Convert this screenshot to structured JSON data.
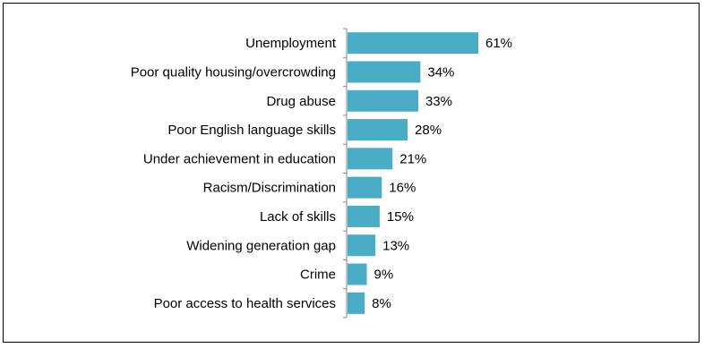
{
  "chart_data": {
    "type": "bar",
    "orientation": "horizontal",
    "categories": [
      "Unemployment",
      "Poor quality housing/overcrowding",
      "Drug abuse",
      "Poor English language skills",
      "Under achievement in education",
      "Racism/Discrimination",
      "Lack of skills",
      "Widening generation gap",
      "Crime",
      "Poor access to health services"
    ],
    "values": [
      61,
      34,
      33,
      28,
      21,
      16,
      15,
      13,
      9,
      8
    ],
    "value_labels": [
      "61%",
      "34%",
      "33%",
      "28%",
      "21%",
      "16%",
      "15%",
      "13%",
      "9%",
      "8%"
    ],
    "title": "",
    "xlabel": "",
    "ylabel": "",
    "xlim": [
      0,
      100
    ],
    "grid": false,
    "legend": "none",
    "bar_color": "#4BACC6"
  }
}
